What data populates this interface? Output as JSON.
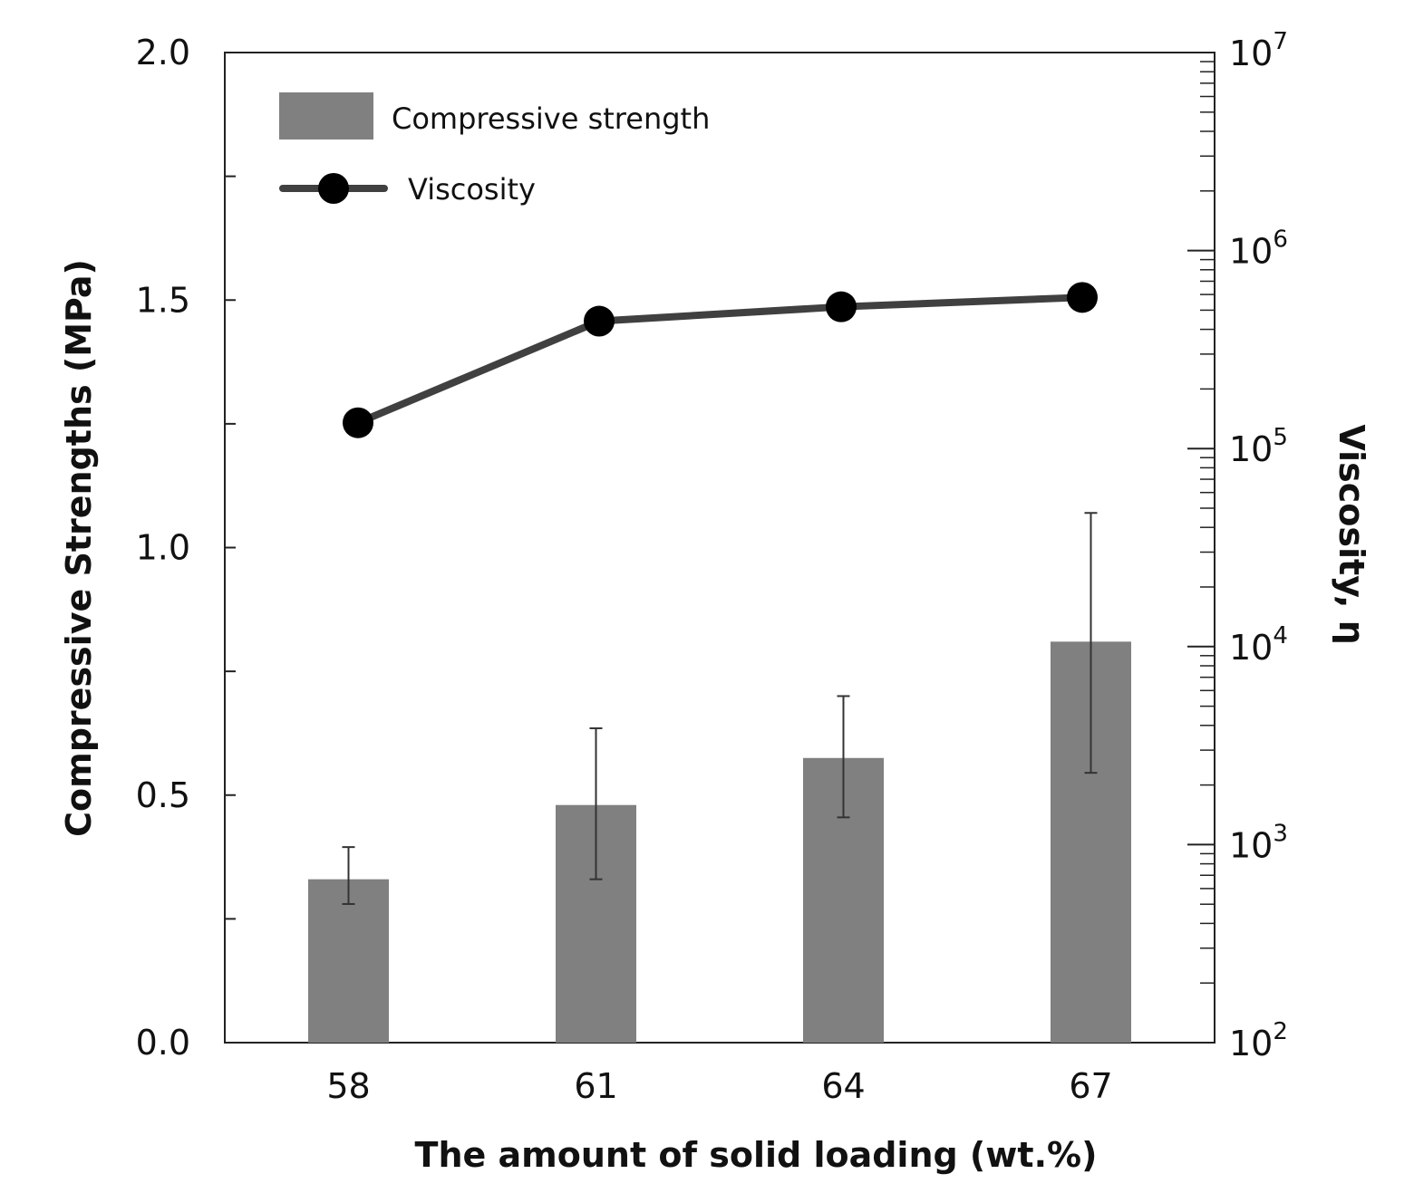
{
  "chart_data": {
    "type": "bar+line",
    "x_title": "The amount of solid loading (wt.%)",
    "y_left_title": "Compressive Strengths (MPa)",
    "y_right_title": "Viscosity, η",
    "categories": [
      "58",
      "61",
      "64",
      "67"
    ],
    "y_left": {
      "min": 0.0,
      "max": 2.0,
      "tick_labels": [
        "0.0",
        "0.5",
        "1.0",
        "1.5",
        "2.0"
      ],
      "tick_values": [
        0.0,
        0.5,
        1.0,
        1.5,
        2.0
      ],
      "minor_tick_values": [
        0.25,
        0.75,
        1.25,
        1.75
      ]
    },
    "y_right": {
      "scale": "log",
      "min_exp": 2,
      "max_exp": 7,
      "tick_exponents": [
        2,
        3,
        4,
        5,
        6,
        7
      ],
      "tick_base": "10",
      "tick_exp_labels": [
        "2",
        "3",
        "4",
        "5",
        "6",
        "7"
      ]
    },
    "series": [
      {
        "name": "Compressive strength",
        "type": "bar",
        "color": "#808080",
        "values": [
          0.33,
          0.48,
          0.575,
          0.81
        ],
        "error_low": [
          0.28,
          0.33,
          0.455,
          0.545
        ],
        "error_high": [
          0.395,
          0.635,
          0.7,
          1.07
        ]
      },
      {
        "name": "Viscosity",
        "type": "line",
        "axis": "right",
        "color": "#404040",
        "marker_color": "#000000",
        "values": [
          135000,
          440000,
          520000,
          580000
        ]
      }
    ],
    "legend": {
      "position": "top-left",
      "items": [
        "Compressive strength",
        "Viscosity"
      ]
    }
  }
}
